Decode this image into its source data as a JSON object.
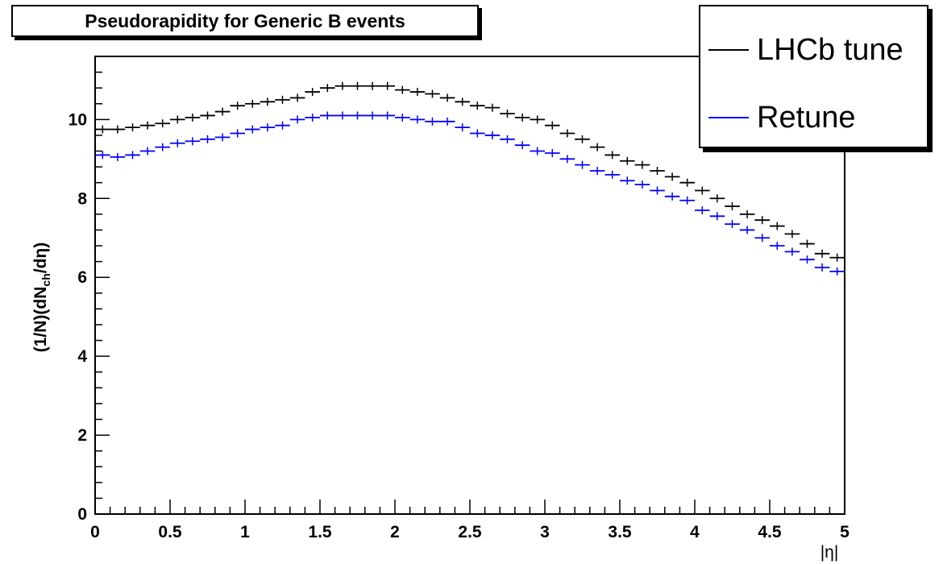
{
  "chart_data": {
    "type": "histogram",
    "title": "Pseudorapidity for Generic B events",
    "xlabel": "|η|",
    "ylabel": {
      "prefix": "(1/N)(dN",
      "subscript": "ch",
      "suffix": "/dη)"
    },
    "xlim": [
      0,
      5
    ],
    "ylim": [
      0,
      11.6
    ],
    "xticks": [
      "0",
      "0.5",
      "1",
      "1.5",
      "2",
      "2.5",
      "3",
      "3.5",
      "4",
      "4.5",
      "5"
    ],
    "yticks": [
      "0",
      "2",
      "4",
      "6",
      "8",
      "10"
    ],
    "bin_width": 0.1,
    "x": [
      0.05,
      0.15,
      0.25,
      0.35,
      0.45,
      0.55,
      0.65,
      0.75,
      0.85,
      0.95,
      1.05,
      1.15,
      1.25,
      1.35,
      1.45,
      1.55,
      1.65,
      1.75,
      1.85,
      1.95,
      2.05,
      2.15,
      2.25,
      2.35,
      2.45,
      2.55,
      2.65,
      2.75,
      2.85,
      2.95,
      3.05,
      3.15,
      3.25,
      3.35,
      3.45,
      3.55,
      3.65,
      3.75,
      3.85,
      3.95,
      4.05,
      4.15,
      4.25,
      4.35,
      4.45,
      4.55,
      4.65,
      4.75,
      4.85,
      4.95
    ],
    "series": [
      {
        "name": "LHCb tune",
        "color": "#000000",
        "values": [
          9.75,
          9.75,
          9.8,
          9.85,
          9.9,
          10.0,
          10.05,
          10.1,
          10.2,
          10.35,
          10.4,
          10.45,
          10.5,
          10.55,
          10.7,
          10.8,
          10.85,
          10.85,
          10.85,
          10.85,
          10.75,
          10.7,
          10.65,
          10.55,
          10.45,
          10.35,
          10.3,
          10.15,
          10.05,
          10.0,
          9.85,
          9.65,
          9.5,
          9.3,
          9.1,
          8.95,
          8.85,
          8.7,
          8.55,
          8.4,
          8.2,
          8.0,
          7.8,
          7.6,
          7.45,
          7.3,
          7.1,
          6.85,
          6.6,
          6.5
        ]
      },
      {
        "name": "Retune",
        "color": "#0000ff",
        "values": [
          9.1,
          9.05,
          9.1,
          9.2,
          9.3,
          9.4,
          9.45,
          9.5,
          9.55,
          9.65,
          9.75,
          9.8,
          9.85,
          10.0,
          10.05,
          10.1,
          10.1,
          10.1,
          10.1,
          10.1,
          10.05,
          10.0,
          9.95,
          9.95,
          9.8,
          9.65,
          9.6,
          9.5,
          9.35,
          9.2,
          9.15,
          9.0,
          8.85,
          8.7,
          8.6,
          8.45,
          8.35,
          8.2,
          8.05,
          7.95,
          7.7,
          7.55,
          7.35,
          7.2,
          7.0,
          6.8,
          6.65,
          6.45,
          6.25,
          6.15
        ]
      }
    ],
    "legend_position": "top-right",
    "grid": false
  }
}
